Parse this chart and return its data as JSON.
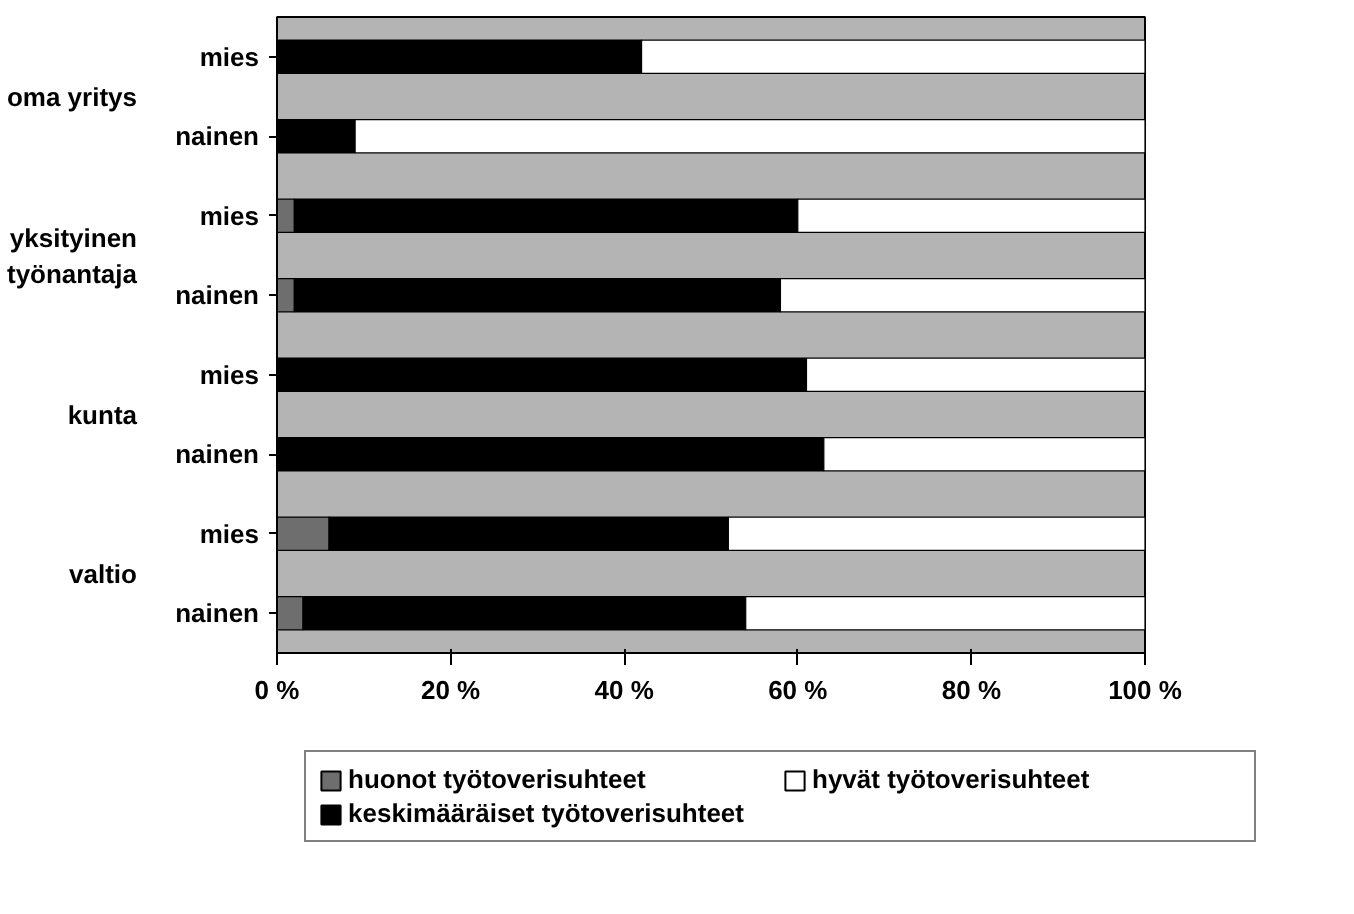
{
  "chart_data": {
    "type": "bar",
    "orientation": "horizontal",
    "stacked": true,
    "categories": [
      "mies",
      "nainen",
      "mies",
      "nainen",
      "mies",
      "nainen",
      "mies",
      "nainen"
    ],
    "series": [
      {
        "name": "huonot työtoverisuhteet",
        "color": "#6e6e6e",
        "values": [
          0,
          0,
          2,
          2,
          0,
          0,
          6,
          3
        ]
      },
      {
        "name": "keskimääräiset työtoverisuhteet",
        "color": "#000000",
        "values": [
          42,
          9,
          58,
          56,
          61,
          63,
          46,
          51
        ]
      },
      {
        "name": "hyvät työtoverisuhteet",
        "color": "#ffffff",
        "values": [
          58,
          91,
          40,
          42,
          39,
          37,
          48,
          46
        ]
      }
    ],
    "xlim": [
      0,
      100
    ],
    "xticks": [
      {
        "value": 0,
        "label": "0 %"
      },
      {
        "value": 20,
        "label": "20 %"
      },
      {
        "value": 40,
        "label": "40 %"
      },
      {
        "value": 60,
        "label": "60 %"
      },
      {
        "value": 80,
        "label": "80 %"
      },
      {
        "value": 100,
        "label": "100 %"
      }
    ],
    "annotations": [
      "oma yritys",
      "yksityinen\ntyönantaja",
      "kunta",
      "valtio"
    ],
    "legend": "bottom",
    "grid": false
  }
}
